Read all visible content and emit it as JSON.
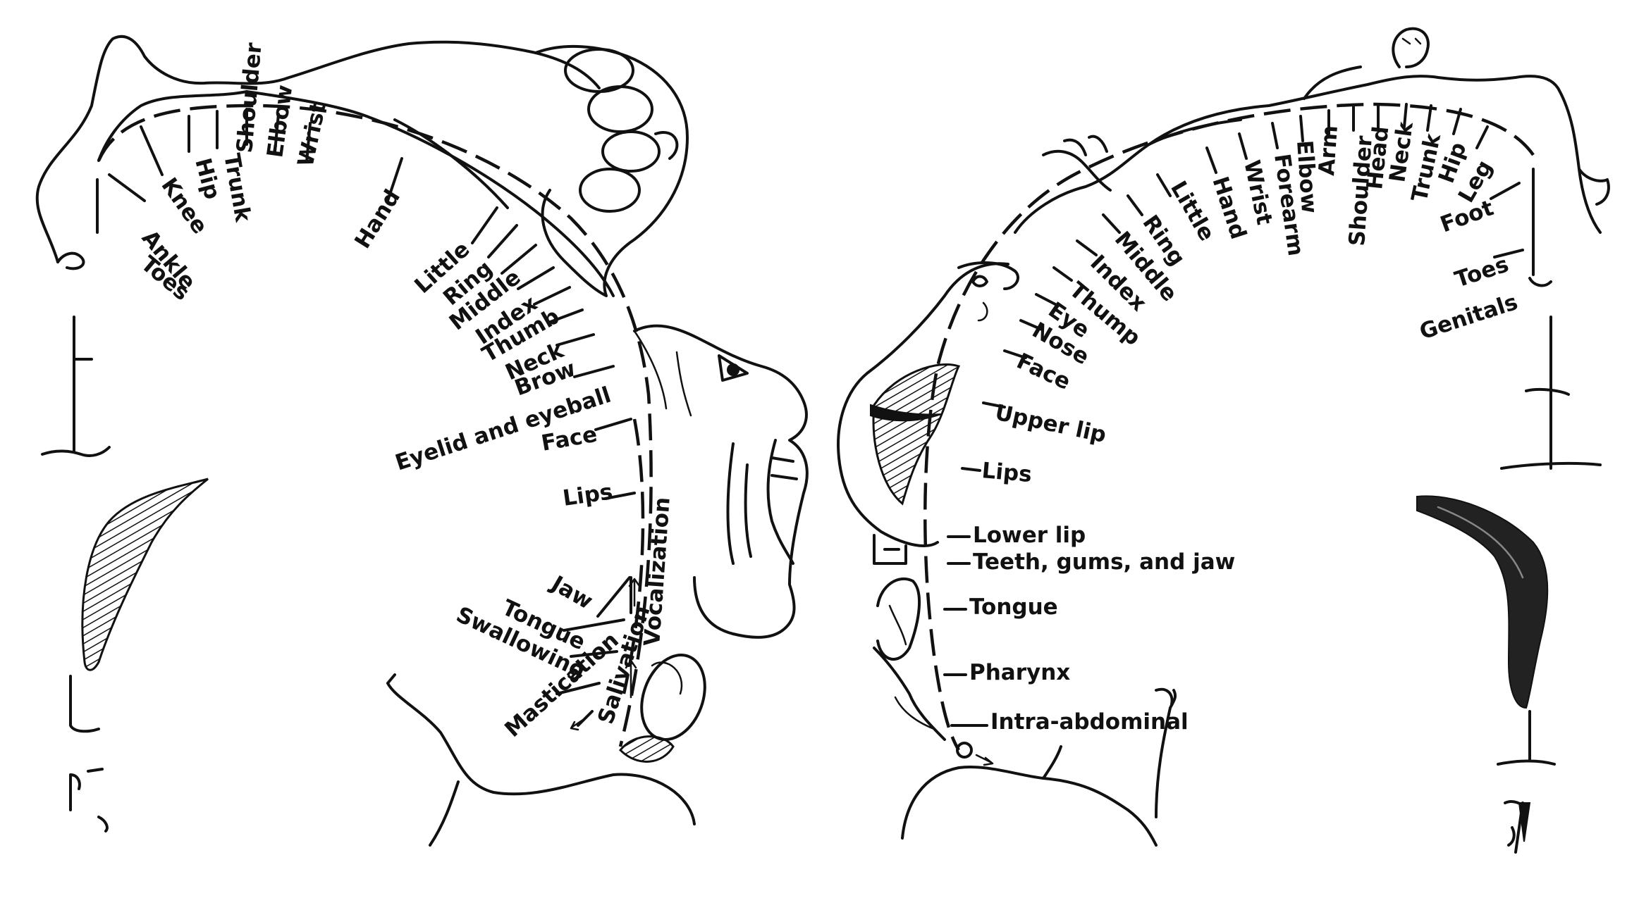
{
  "motor_homunculus": {
    "labels": [
      {
        "id": "toes",
        "text": "Toes"
      },
      {
        "id": "ankle",
        "text": "Ankle"
      },
      {
        "id": "knee",
        "text": "Knee"
      },
      {
        "id": "hip",
        "text": "Hip"
      },
      {
        "id": "trunk",
        "text": "Trunk"
      },
      {
        "id": "shoulder",
        "text": "Shoulder"
      },
      {
        "id": "elbow",
        "text": "Elbow"
      },
      {
        "id": "wrist",
        "text": "Wrist"
      },
      {
        "id": "hand",
        "text": "Hand"
      },
      {
        "id": "little",
        "text": "Little"
      },
      {
        "id": "ring",
        "text": "Ring"
      },
      {
        "id": "middle",
        "text": "Middle"
      },
      {
        "id": "index",
        "text": "Index"
      },
      {
        "id": "thumb",
        "text": "Thumb"
      },
      {
        "id": "neck",
        "text": "Neck"
      },
      {
        "id": "brow",
        "text": "Brow"
      },
      {
        "id": "eyelid",
        "text": "Eyelid and eyeball"
      },
      {
        "id": "face",
        "text": "Face"
      },
      {
        "id": "lips",
        "text": "Lips"
      },
      {
        "id": "jaw",
        "text": "Jaw"
      },
      {
        "id": "tongue",
        "text": "Tongue"
      },
      {
        "id": "swallowing",
        "text": "Swallowing"
      },
      {
        "id": "mastication",
        "text": "Mastication"
      },
      {
        "id": "salivation",
        "text": "Salivation"
      },
      {
        "id": "vocalization",
        "text": "Vocalization"
      }
    ]
  },
  "sensory_homunculus": {
    "labels": [
      {
        "id": "genitals",
        "text": "Genitals"
      },
      {
        "id": "toes",
        "text": "Toes"
      },
      {
        "id": "foot",
        "text": "Foot"
      },
      {
        "id": "leg",
        "text": "Leg"
      },
      {
        "id": "hip",
        "text": "Hip"
      },
      {
        "id": "trunk",
        "text": "Trunk"
      },
      {
        "id": "neck",
        "text": "Neck"
      },
      {
        "id": "head",
        "text": "Head"
      },
      {
        "id": "shoulder",
        "text": "Shoulder"
      },
      {
        "id": "arm",
        "text": "Arm"
      },
      {
        "id": "elbow",
        "text": "Elbow"
      },
      {
        "id": "forearm",
        "text": "Forearm"
      },
      {
        "id": "wrist",
        "text": "Wrist"
      },
      {
        "id": "hand",
        "text": "Hand"
      },
      {
        "id": "little",
        "text": "Little"
      },
      {
        "id": "ring",
        "text": "Ring"
      },
      {
        "id": "middle",
        "text": "Middle"
      },
      {
        "id": "index",
        "text": "Index"
      },
      {
        "id": "thump",
        "text": "Thump"
      },
      {
        "id": "eye",
        "text": "Eye"
      },
      {
        "id": "nose",
        "text": "Nose"
      },
      {
        "id": "face",
        "text": "Face"
      },
      {
        "id": "upper_lip",
        "text": "Upper lip"
      },
      {
        "id": "lips",
        "text": "Lips"
      },
      {
        "id": "lower_lip",
        "text": "Lower lip"
      },
      {
        "id": "teeth",
        "text": "Teeth, gums, and jaw"
      },
      {
        "id": "tongue",
        "text": "Tongue"
      },
      {
        "id": "pharynx",
        "text": "Pharynx"
      },
      {
        "id": "intra_abdominal",
        "text": "Intra-abdominal"
      }
    ]
  }
}
